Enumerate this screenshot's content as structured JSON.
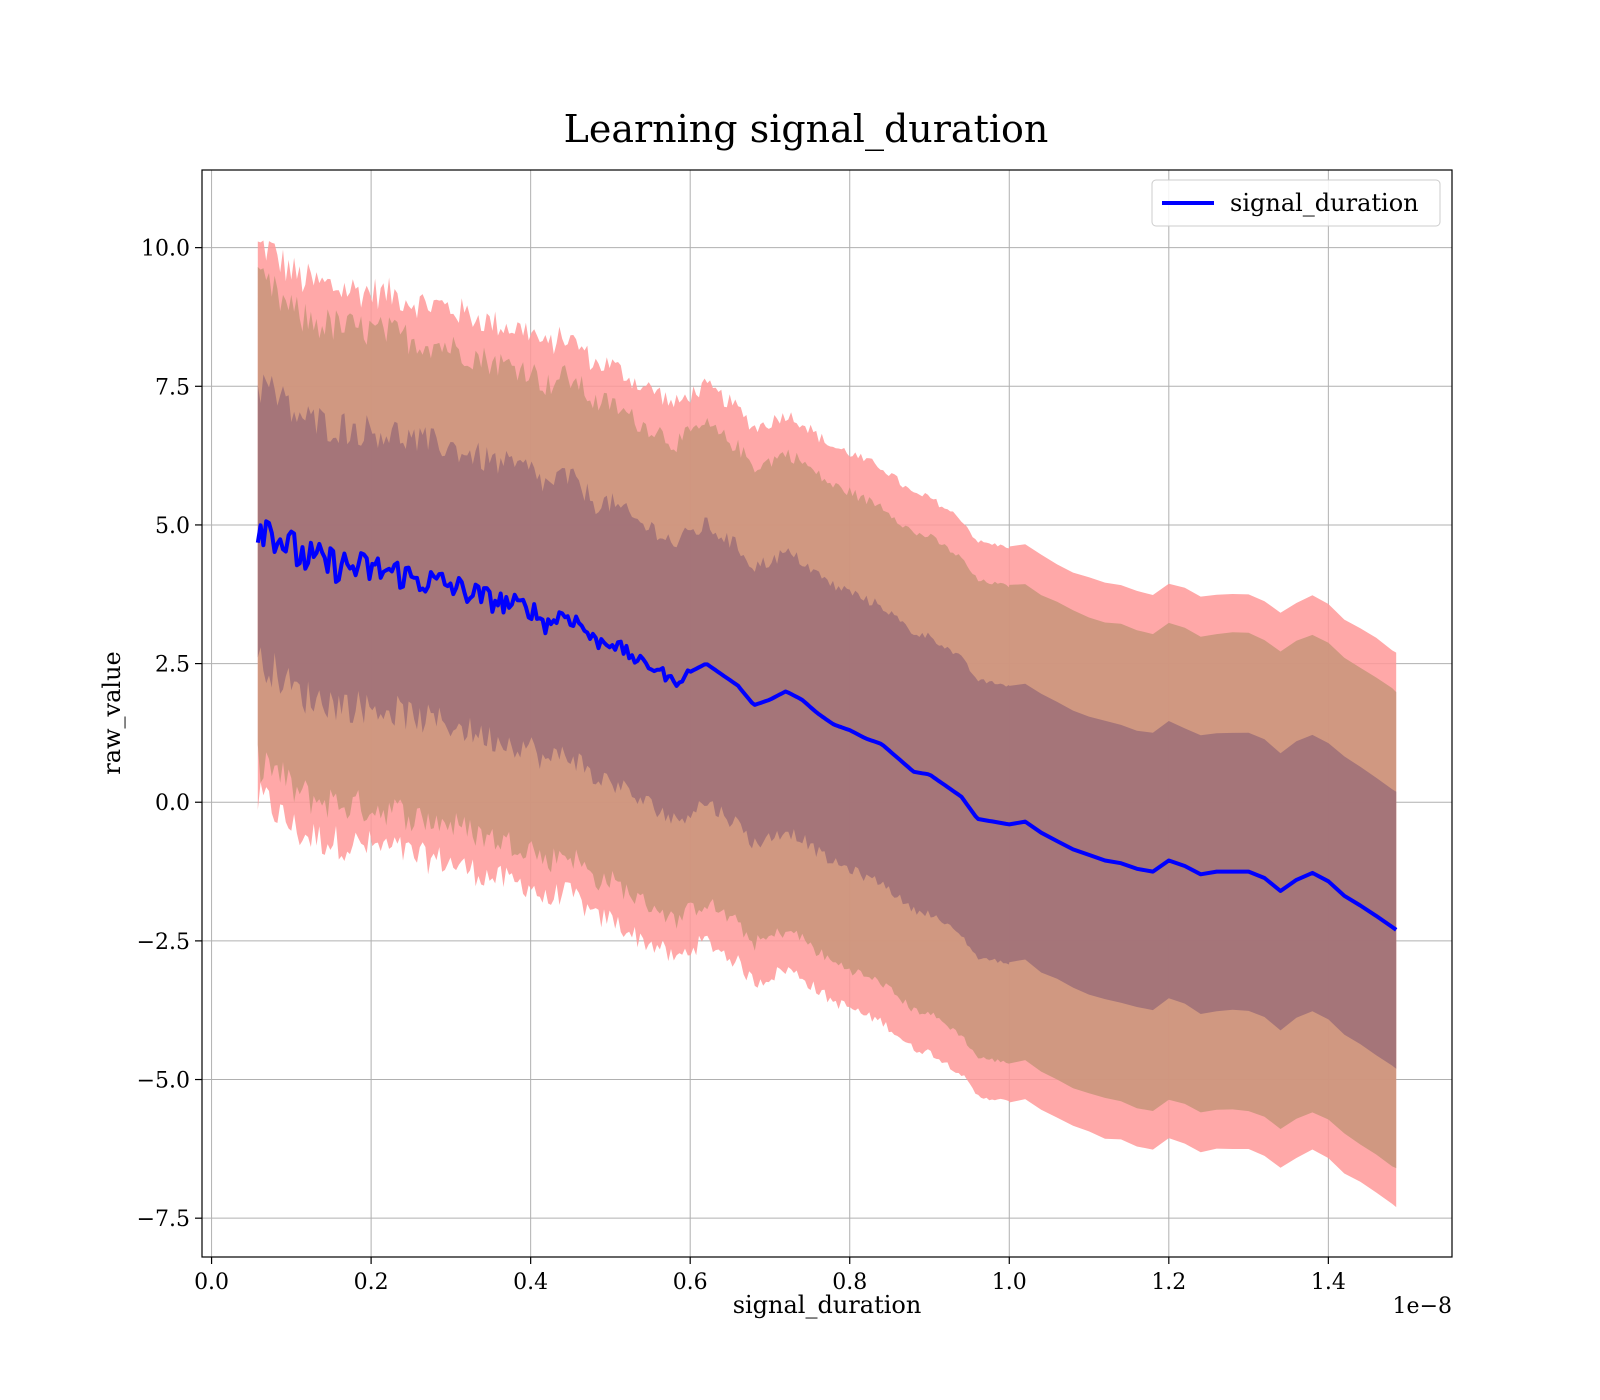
{
  "chart_data": {
    "type": "line",
    "title": "Learning signal_duration",
    "xlabel": "signal_duration",
    "ylabel": "raw_value",
    "x_offset_label": "1e−8",
    "xlim": [
      -0.012,
      1.555
    ],
    "ylim": [
      -8.2,
      11.4
    ],
    "xticks": [
      0.0,
      0.2,
      0.4,
      0.6,
      0.8,
      1.0,
      1.2,
      1.4
    ],
    "xtick_labels": [
      "0.0",
      "0.2",
      "0.4",
      "0.6",
      "0.8",
      "1.0",
      "1.2",
      "1.4"
    ],
    "yticks": [
      -7.5,
      -5.0,
      -2.5,
      0.0,
      2.5,
      5.0,
      7.5,
      10.0
    ],
    "ytick_labels": [
      "−7.5",
      "−5.0",
      "−2.5",
      "0.0",
      "2.5",
      "5.0",
      "7.5",
      "10.0"
    ],
    "grid": true,
    "legend_position": "top-right",
    "colors": {
      "line": "#0000ff",
      "band_3sd": "#ff9999",
      "band_2sd": "#c8957a",
      "band_1sd": "#9e6e78",
      "grid": "#b0b0b0",
      "axes": "#000000"
    },
    "series": [
      {
        "name": "signal_duration",
        "x": [
          0.058,
          0.07,
          0.09,
          0.11,
          0.13,
          0.15,
          0.17,
          0.2,
          0.23,
          0.26,
          0.29,
          0.32,
          0.35,
          0.38,
          0.4,
          0.42,
          0.44,
          0.46,
          0.48,
          0.5,
          0.52,
          0.54,
          0.56,
          0.58,
          0.6,
          0.62,
          0.64,
          0.66,
          0.68,
          0.7,
          0.72,
          0.74,
          0.76,
          0.78,
          0.8,
          0.82,
          0.84,
          0.86,
          0.88,
          0.9,
          0.92,
          0.94,
          0.96,
          0.98,
          1.0,
          1.02,
          1.04,
          1.06,
          1.08,
          1.1,
          1.12,
          1.14,
          1.16,
          1.18,
          1.2,
          1.22,
          1.24,
          1.26,
          1.28,
          1.31,
          1.34,
          1.37,
          1.39,
          1.41,
          1.45,
          1.485
        ],
        "values": [
          5.0,
          5.0,
          4.7,
          4.45,
          4.35,
          4.3,
          4.25,
          4.2,
          4.15,
          4.0,
          3.95,
          3.8,
          3.65,
          3.55,
          3.5,
          3.2,
          3.4,
          3.25,
          2.9,
          2.9,
          2.7,
          2.5,
          2.4,
          2.15,
          2.35,
          2.5,
          2.3,
          2.1,
          1.75,
          1.85,
          2.0,
          1.85,
          1.6,
          1.4,
          1.3,
          1.15,
          1.05,
          0.8,
          0.55,
          0.5,
          0.3,
          0.1,
          -0.3,
          -0.35,
          -0.4,
          -0.35,
          -0.55,
          -0.7,
          -0.85,
          -0.95,
          -1.05,
          -1.1,
          -1.2,
          -1.25,
          -1.05,
          -1.15,
          -1.3,
          -1.25,
          -1.25,
          -1.25,
          -1.6,
          -1.3,
          -1.25,
          -1.6,
          -1.95,
          -2.3
        ]
      }
    ],
    "bands": [
      {
        "level": "3sd",
        "width": 5.0
      },
      {
        "level": "2sd",
        "width": 4.3
      },
      {
        "level": "1sd",
        "width": 2.5
      }
    ]
  }
}
